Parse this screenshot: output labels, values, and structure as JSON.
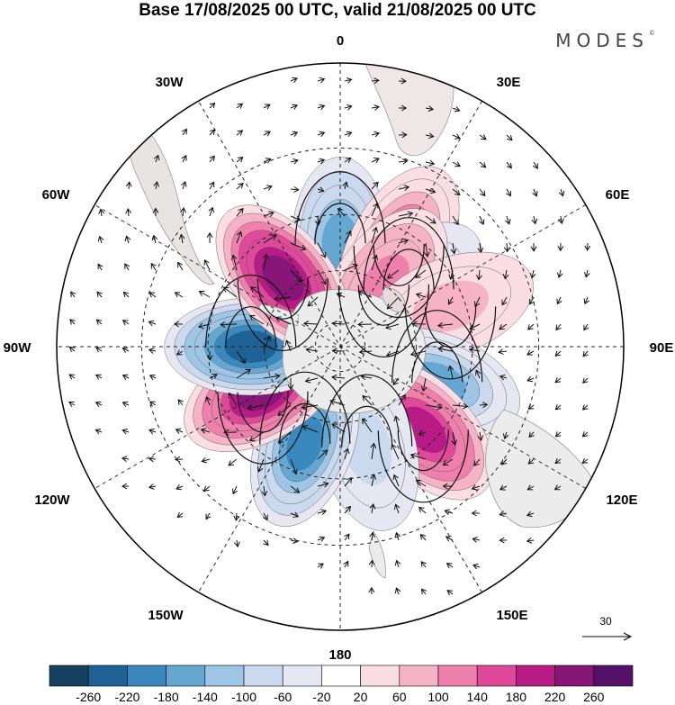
{
  "title": "Base 17/08/2025 00 UTC, valid 21/08/2025 00 UTC",
  "brand": "MODES",
  "brand_mark": "©",
  "longitude_labels": {
    "lon0": "0",
    "lon30e": "30E",
    "lon60e": "60E",
    "lon90e": "90E",
    "lon120e": "120E",
    "lon150e": "150E",
    "lon180": "180",
    "lon150w": "150W",
    "lon120w": "120W",
    "lon90w": "90W",
    "lon60w": "60W",
    "lon30w": "30W"
  },
  "reference_vector": {
    "label": "30",
    "value": 30
  },
  "colorbar": {
    "labels": [
      "-260",
      "-220",
      "-180",
      "-140",
      "-100",
      "-60",
      "-20",
      "20",
      "60",
      "100",
      "140",
      "180",
      "220",
      "260"
    ],
    "colors": [
      "#173f5f",
      "#1f6396",
      "#3a88bd",
      "#66a7d2",
      "#9ec5e6",
      "#cbd9ee",
      "#e7e7f3",
      "#ffffff",
      "#fbdde5",
      "#f6b3c8",
      "#ee80ab",
      "#de4a99",
      "#b81b86",
      "#871676",
      "#55106a"
    ]
  },
  "chart_data": {
    "type": "polar-stereographic anomaly map",
    "projection": "south polar stereographic",
    "field": "geopotential height anomaly with wind vectors",
    "contour_levels": [
      -260,
      -220,
      -180,
      -140,
      -100,
      -60,
      -20,
      20,
      60,
      100,
      140,
      180,
      220,
      260
    ],
    "anomaly_centers": [
      {
        "lon": 0,
        "lat": -50,
        "sign": "negative",
        "peak": -160
      },
      {
        "lon": 30,
        "lat": -45,
        "sign": "positive",
        "peak": 140
      },
      {
        "lon": 50,
        "lat": -55,
        "sign": "negative",
        "peak": -80
      },
      {
        "lon": 35,
        "lat": -60,
        "sign": "positive",
        "peak": 120
      },
      {
        "lon": 70,
        "lat": -45,
        "sign": "positive",
        "peak": 60
      },
      {
        "lon": 110,
        "lat": -50,
        "sign": "negative",
        "peak": -150
      },
      {
        "lon": 135,
        "lat": -45,
        "sign": "positive",
        "peak": 200
      },
      {
        "lon": 165,
        "lat": -50,
        "sign": "negative",
        "peak": -80
      },
      {
        "lon": -160,
        "lat": -50,
        "sign": "negative",
        "peak": -190
      },
      {
        "lon": -120,
        "lat": -55,
        "sign": "positive",
        "peak": 240
      },
      {
        "lon": -90,
        "lat": -55,
        "sign": "negative",
        "peak": -240
      },
      {
        "lon": -40,
        "lat": -55,
        "sign": "positive",
        "peak": 250
      }
    ]
  }
}
